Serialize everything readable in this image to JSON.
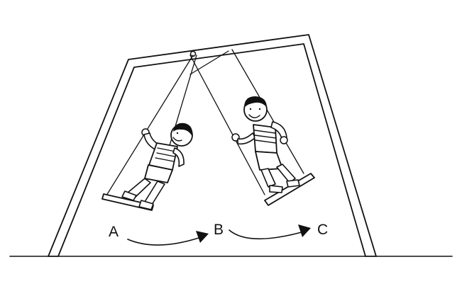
{
  "labels": {
    "a": "A",
    "b": "B",
    "c": "C"
  },
  "colors": {
    "ink": "#111111",
    "background": "#ffffff"
  }
}
